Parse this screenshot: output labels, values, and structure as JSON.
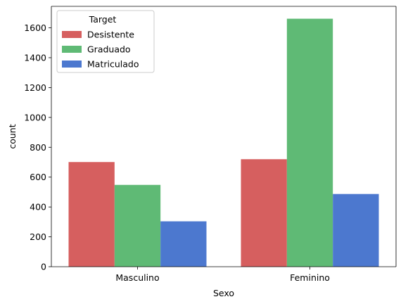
{
  "chart_data": {
    "type": "bar",
    "categories": [
      "Masculino",
      "Feminino"
    ],
    "series": [
      {
        "name": "Desistente",
        "values": [
          701,
          720
        ],
        "color": "#d65f5f"
      },
      {
        "name": "Graduado",
        "values": [
          548,
          1661
        ],
        "color": "#5fba75"
      },
      {
        "name": "Matriculado",
        "values": [
          304,
          487
        ],
        "color": "#4c78cf"
      }
    ],
    "xlabel": "Sexo",
    "ylabel": "count",
    "ylim": [
      0,
      1744
    ],
    "yticks": [
      0,
      200,
      400,
      600,
      800,
      1000,
      1200,
      1400,
      1600
    ],
    "legend": {
      "title": "Target",
      "placement": "top-left"
    },
    "grid": false
  }
}
